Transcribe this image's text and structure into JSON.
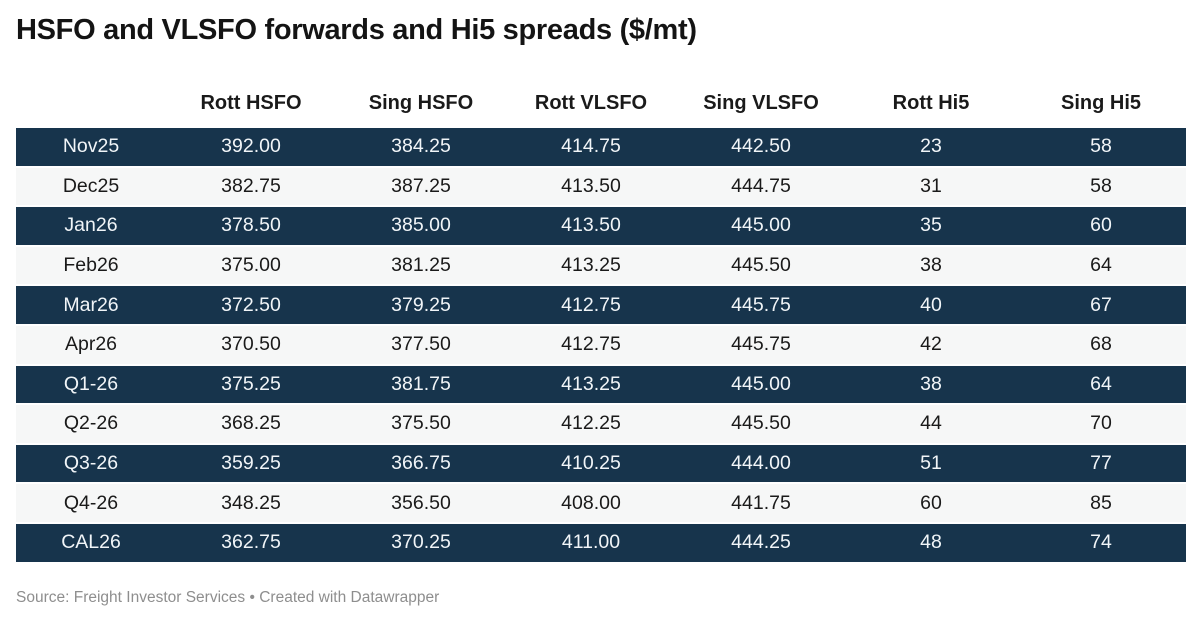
{
  "title": "HSFO and VLSFO forwards and Hi5 spreads ($/mt)",
  "chart_data": {
    "type": "table",
    "title": "HSFO and VLSFO forwards and Hi5 spreads ($/mt)",
    "columns": [
      "",
      "Rott HSFO",
      "Sing HSFO",
      "Rott VLSFO",
      "Sing VLSFO",
      "Rott Hi5",
      "Sing Hi5"
    ],
    "rows": [
      {
        "label": "Nov25",
        "values": [
          "392.00",
          "384.25",
          "414.75",
          "442.50",
          "23",
          "58"
        ]
      },
      {
        "label": "Dec25",
        "values": [
          "382.75",
          "387.25",
          "413.50",
          "444.75",
          "31",
          "58"
        ]
      },
      {
        "label": "Jan26",
        "values": [
          "378.50",
          "385.00",
          "413.50",
          "445.00",
          "35",
          "60"
        ]
      },
      {
        "label": "Feb26",
        "values": [
          "375.00",
          "381.25",
          "413.25",
          "445.50",
          "38",
          "64"
        ]
      },
      {
        "label": "Mar26",
        "values": [
          "372.50",
          "379.25",
          "412.75",
          "445.75",
          "40",
          "67"
        ]
      },
      {
        "label": "Apr26",
        "values": [
          "370.50",
          "377.50",
          "412.75",
          "445.75",
          "42",
          "68"
        ]
      },
      {
        "label": "Q1-26",
        "values": [
          "375.25",
          "381.75",
          "413.25",
          "445.00",
          "38",
          "64"
        ]
      },
      {
        "label": "Q2-26",
        "values": [
          "368.25",
          "375.50",
          "412.25",
          "445.50",
          "44",
          "70"
        ]
      },
      {
        "label": "Q3-26",
        "values": [
          "359.25",
          "366.75",
          "410.25",
          "444.00",
          "51",
          "77"
        ]
      },
      {
        "label": "Q4-26",
        "values": [
          "348.25",
          "356.50",
          "408.00",
          "441.75",
          "60",
          "85"
        ]
      },
      {
        "label": "CAL26",
        "values": [
          "362.75",
          "370.25",
          "411.00",
          "444.25",
          "48",
          "74"
        ]
      }
    ],
    "layout_hints": "zebra table, odd data rows dark navy with white text, even rows light gray with dark text, all cells centered, first header cell empty"
  },
  "footer": {
    "source_prefix": "Source: ",
    "source_name": "Freight Investor Services",
    "separator": " • ",
    "credit": "Created with Datawrapper"
  },
  "colors": {
    "row_dark": "#17344c",
    "row_light": "#f6f7f7",
    "row_dark_text": "#f1f5f8",
    "row_light_text": "#1a1a1a",
    "title_text": "#141414",
    "footer_text": "#8e8e8e",
    "background": "#ffffff"
  }
}
